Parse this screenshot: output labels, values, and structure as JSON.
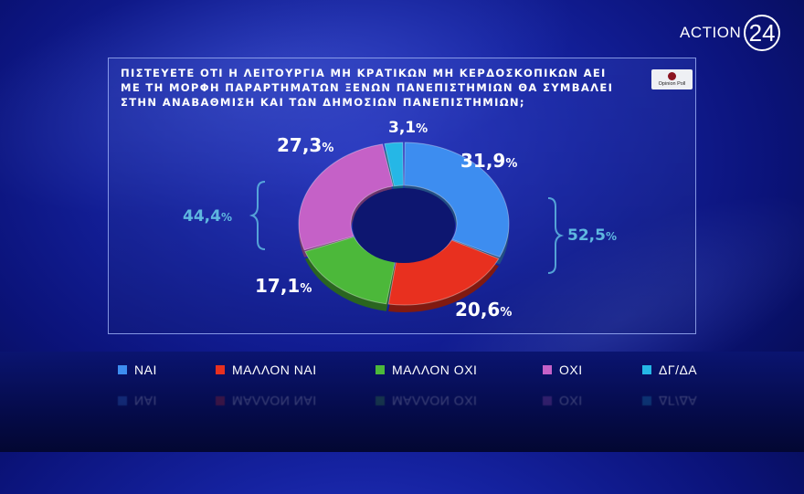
{
  "brand": {
    "text": "ACTION",
    "number": "24"
  },
  "source": {
    "text": "Opinion Poll"
  },
  "chart_data": {
    "type": "pie",
    "title": "ΠΙΣΤΕΥΕΤΕ ΟΤΙ Η ΛΕΙΤΟΥΡΓΙΑ ΜΗ ΚΡΑΤΙΚΩΝ ΜΗ ΚΕΡΔΟΣΚΟΠΙΚΩΝ ΑΕΙ ΜΕ ΤΗ ΜΟΡΦΗ ΠΑΡΑΡΤΗΜΑΤΩΝ ΞΕΝΩΝ ΠΑΝΕΠΙΣΤΗΜΙΩΝ ΘΑ ΣΥΜΒΑΛΕΙ ΣΤΗΝ ΑΝΑΒΑΘΜΙΣΗ ΚΑΙ ΤΩΝ ΔΗΜΟΣΙΩΝ ΠΑΝΕΠΙΣΤΗΜΙΩΝ;",
    "title_lines": [
      "ΠΙΣΤΕΥΕΤΕ ΟΤΙ Η ΛΕΙΤΟΥΡΓΙΑ ΜΗ ΚΡΑΤΙΚΩΝ ΜΗ ΚΕΡΔΟΣΚΟΠΙΚΩΝ ΑΕΙ",
      "ΜΕ ΤΗ ΜΟΡΦΗ ΠΑΡΑΡΤΗΜΑΤΩΝ ΞΕΝΩΝ ΠΑΝΕΠΙΣΤΗΜΙΩΝ ΘΑ ΣΥΜΒΑΛΕΙ",
      "ΣΤΗΝ ΑΝΑΒΑΘΜΙΣΗ ΚΑΙ ΤΩΝ ΔΗΜΟΣΙΩΝ ΠΑΝΕΠΙΣΤΗΜΙΩΝ;"
    ],
    "style": "donut",
    "slices": [
      {
        "label": "ΝΑΙ",
        "value": 31.9,
        "display": "31,9",
        "color": "#3d8df0"
      },
      {
        "label": "ΜΑΛΛΟΝ ΝΑΙ",
        "value": 20.6,
        "display": "20,6",
        "color": "#e8301f"
      },
      {
        "label": "ΜΑΛΛΟΝ ΟΧΙ",
        "value": 17.1,
        "display": "17,1",
        "color": "#4cb83a"
      },
      {
        "label": "ΟΧΙ",
        "value": 27.3,
        "display": "27,3",
        "color": "#c561c7"
      },
      {
        "label": "ΔΓ/ΔΑ",
        "value": 3.1,
        "display": "3,1",
        "color": "#25b7e6"
      }
    ],
    "groups": [
      {
        "display": "52,5",
        "value": 52.5,
        "color": "#5fb8e0"
      },
      {
        "display": "44,4",
        "value": 44.4,
        "color": "#5fb8e0"
      }
    ],
    "percent_sign": "%",
    "legend_placement": "bottom"
  }
}
